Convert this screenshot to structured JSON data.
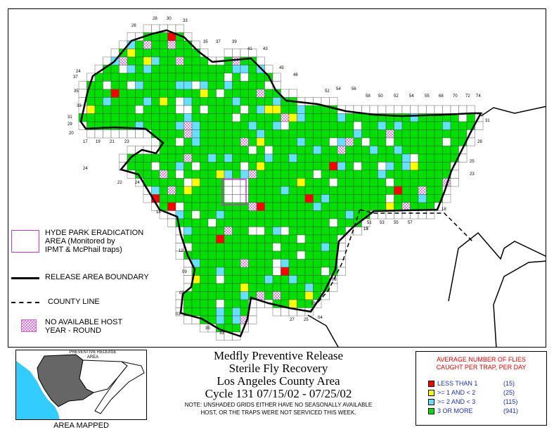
{
  "title": {
    "line1": "Medfly Preventive Release",
    "line2": "Sterile Fly Recovery",
    "line3": "Los Angeles County Area",
    "line4": "Cycle 131     07/15/02  -  07/25/02",
    "note_line1": "NOTE: UNSHADED GRIDS EITHER HAVE NO SEASONALLY AVAILABLE",
    "note_line2": "HOST, OR THE TRAPS WERE NOT SERVICED THIS WEEK."
  },
  "map_legend": {
    "hyde_park_line1": "HYDE PARK ERADICATION",
    "hyde_park_line2": "AREA (Monitored by",
    "hyde_park_line3": "IPMT & McPhail traps)",
    "release_boundary": "RELEASE AREA BOUNDARY",
    "county_line": "COUNTY LINE",
    "no_host_line1": "NO AVAILABLE HOST",
    "no_host_line2": "YEAR - ROUND"
  },
  "inset": {
    "label_line1": "PREVENTIVE RELEASE",
    "label_line2": "AREA",
    "caption": "AREA MAPPED"
  },
  "fly_legend": {
    "header_line1": "AVERAGE NUMBER OF FLIES",
    "header_line2": "CAUGHT PER TRAP, PER DAY",
    "rows": [
      {
        "label": "LESS THAN 1",
        "count": "(15)",
        "color": "#ff0000"
      },
      {
        "label": ">= 1 AND < 2",
        "count": "(25)",
        "color": "#ffff00"
      },
      {
        "label": ">= 2 AND < 3",
        "count": "(115)",
        "color": "#66e0ff"
      },
      {
        "label": "3 OR MORE",
        "count": "(941)",
        "color": "#00e000"
      }
    ]
  },
  "grid_labels": {
    "top": [
      "26",
      "28",
      "30",
      "33",
      "35",
      "37",
      "39",
      "41",
      "43",
      "45",
      "48",
      "52",
      "54",
      "56",
      "58",
      "50",
      "52",
      "54",
      "55",
      "68",
      "70",
      "72",
      "74"
    ],
    "left": [
      "20",
      "24",
      "37",
      "35",
      "33",
      "31",
      "29",
      "24",
      "18",
      "12",
      "09",
      "05",
      "03"
    ],
    "bottom": [
      "17",
      "19",
      "21",
      "23",
      "22",
      "24",
      "51",
      "53",
      "55",
      "57",
      "35",
      "33",
      "27",
      "25",
      "04",
      "03",
      "08",
      "13"
    ],
    "right": [
      "31",
      "28",
      "25",
      "23",
      "18",
      "15"
    ]
  },
  "colors": {
    "green": "#00e000",
    "cyan": "#66e0ff",
    "yellow": "#ffff00",
    "red": "#ff0000",
    "hatch": "#cc66cc",
    "hyde_park": "#cc33cc"
  }
}
